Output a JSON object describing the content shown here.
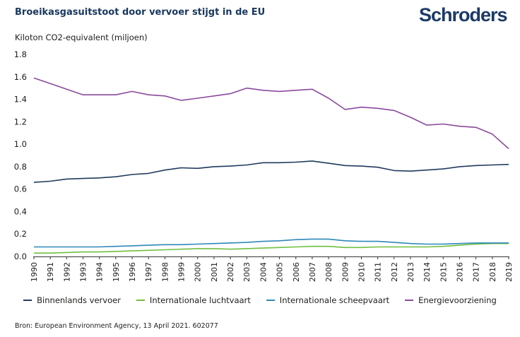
{
  "header": {
    "title": "Broeikasgasuitstoot door vervoer stijgt in de EU",
    "logo_text": "Schroders",
    "unit_label": "Kiloton CO2-equivalent (miljoen)"
  },
  "source": "Bron: European Environment Agency, 13 April 2021. 602077",
  "colors": {
    "Binnenlands vervoer": "#1f3b5e",
    "Internationale luchtvaart": "#6fbf3f",
    "Internationale scheepvaart": "#2e88b8",
    "Energievoorziening": "#8b4a9c",
    "axis": "#333333"
  },
  "chart_data": {
    "type": "line",
    "title": "Broeikasgasuitstoot door vervoer stijgt in de EU",
    "ylabel": "Kiloton CO2-equivalent (miljoen)",
    "xlabel": "",
    "ylim": [
      0,
      1.8
    ],
    "yticks": [
      "0.0",
      "0.2",
      "0.4",
      "0.6",
      "0.8",
      "1.0",
      "1.2",
      "1.4",
      "1.6",
      "1.8"
    ],
    "grid": false,
    "legend_position": "bottom",
    "x": [
      "1990",
      "1991",
      "1992",
      "1993",
      "1994",
      "1995",
      "1996",
      "1997",
      "1998",
      "1999",
      "2000",
      "2001",
      "2002",
      "2003",
      "2004",
      "2005",
      "2006",
      "2007",
      "2008",
      "2009",
      "2010",
      "2011",
      "2012",
      "2013",
      "2014",
      "2015",
      "2016",
      "2017",
      "2018",
      "2019"
    ],
    "series": [
      {
        "name": "Binnenlands vervoer",
        "values": [
          0.66,
          0.67,
          0.69,
          0.695,
          0.7,
          0.71,
          0.73,
          0.74,
          0.77,
          0.79,
          0.785,
          0.8,
          0.805,
          0.815,
          0.835,
          0.835,
          0.84,
          0.85,
          0.83,
          0.81,
          0.805,
          0.795,
          0.765,
          0.76,
          0.77,
          0.78,
          0.8,
          0.81,
          0.815,
          0.82
        ]
      },
      {
        "name": "Internationale luchtvaart",
        "values": [
          0.03,
          0.03,
          0.035,
          0.04,
          0.04,
          0.045,
          0.05,
          0.055,
          0.06,
          0.065,
          0.07,
          0.07,
          0.065,
          0.07,
          0.075,
          0.08,
          0.085,
          0.09,
          0.09,
          0.08,
          0.08,
          0.085,
          0.085,
          0.085,
          0.085,
          0.09,
          0.1,
          0.11,
          0.115,
          0.115
        ]
      },
      {
        "name": "Internationale scheepvaart",
        "values": [
          0.085,
          0.085,
          0.085,
          0.085,
          0.085,
          0.09,
          0.095,
          0.1,
          0.105,
          0.105,
          0.11,
          0.115,
          0.12,
          0.125,
          0.135,
          0.14,
          0.15,
          0.155,
          0.155,
          0.14,
          0.135,
          0.135,
          0.125,
          0.115,
          0.11,
          0.11,
          0.115,
          0.12,
          0.12,
          0.12
        ]
      },
      {
        "name": "Energievoorziening",
        "values": [
          1.59,
          1.54,
          1.49,
          1.44,
          1.44,
          1.44,
          1.47,
          1.44,
          1.43,
          1.39,
          1.41,
          1.43,
          1.45,
          1.5,
          1.48,
          1.47,
          1.48,
          1.49,
          1.41,
          1.31,
          1.33,
          1.32,
          1.3,
          1.24,
          1.17,
          1.18,
          1.16,
          1.15,
          1.09,
          0.96
        ]
      }
    ]
  }
}
